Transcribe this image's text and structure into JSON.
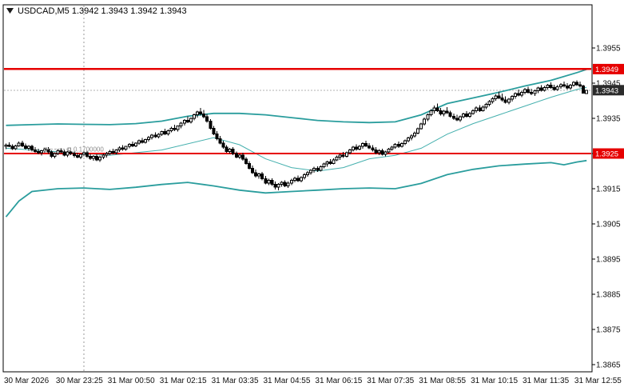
{
  "header": {
    "title_line": "USDCAD,M5 1.3942 1.3943 1.3942 1.3943"
  },
  "annotation": {
    "label": "0.1700000"
  },
  "colors": {
    "band": "#2a9d9d",
    "band_mid": "#45b0ae",
    "hline": "#e60000",
    "bull_fill": "#ffffff",
    "bear_fill": "#000000",
    "candle_outline": "#000000",
    "current_tag_bg": "#2b2b2b",
    "hline_tag_bg": "#e60000",
    "tag_text": "#ffffff",
    "separator": "#999999",
    "bid_line": "#b0b0b0",
    "frame": "#000000"
  },
  "chart_data": {
    "type": "candlestick",
    "symbol": "USDCAD",
    "timeframe": "M5",
    "title": "USDCAD,M5",
    "current_ohlc": {
      "open": "1.3942",
      "high": "1.3943",
      "low": "1.3942",
      "close": "1.3943"
    },
    "price_encoding": {
      "base": 1.39,
      "unit": 0.0001,
      "note": "all p values are (price - 1.39) * 10000"
    },
    "ylim": [
      "1.3863",
      "1.3967"
    ],
    "grid": "off",
    "legend": "none",
    "y_ticks": [
      {
        "p": 55,
        "label": "1.3955"
      },
      {
        "p": 45,
        "label": "1.3945"
      },
      {
        "p": 35,
        "label": "1.3935"
      },
      {
        "p": 25,
        "label": "1.3925"
      },
      {
        "p": 15,
        "label": "1.3915"
      },
      {
        "p": 5,
        "label": "1.3905"
      },
      {
        "p": -5,
        "label": "1.3895"
      },
      {
        "p": -15,
        "label": "1.3885"
      },
      {
        "p": -25,
        "label": "1.3875"
      },
      {
        "p": -35,
        "label": "1.3865"
      }
    ],
    "x_labels": [
      "30 Mar 2026",
      "30 Mar 23:25",
      "31 Mar 00:50",
      "31 Mar 02:15",
      "31 Mar 03:35",
      "31 Mar 04:55",
      "31 Mar 06:15",
      "31 Mar 07:35",
      "31 Mar 08:55",
      "31 Mar 10:15",
      "31 Mar 11:35",
      "31 Mar 12:55"
    ],
    "day_separator_index": 24,
    "hlines": [
      {
        "p": 49,
        "label": "1.3949"
      },
      {
        "p": 25,
        "label": "1.3925"
      }
    ],
    "current_price": {
      "p": 43,
      "label": "1.3943"
    },
    "bands": {
      "upper": [
        [
          0,
          33
        ],
        [
          8,
          33.2
        ],
        [
          16,
          33.4
        ],
        [
          24,
          33.3
        ],
        [
          32,
          33.2
        ],
        [
          40,
          33.5
        ],
        [
          48,
          34.2
        ],
        [
          56,
          35.6
        ],
        [
          64,
          36.4
        ],
        [
          72,
          36.4
        ],
        [
          80,
          36
        ],
        [
          88,
          35.2
        ],
        [
          96,
          34.4
        ],
        [
          104,
          34
        ],
        [
          112,
          33.8
        ],
        [
          120,
          34
        ],
        [
          128,
          36
        ],
        [
          136,
          39.2
        ],
        [
          144,
          40.8
        ],
        [
          152,
          42.4
        ],
        [
          160,
          44.2
        ],
        [
          168,
          45.8
        ],
        [
          176,
          48
        ],
        [
          179,
          48.9
        ]
      ],
      "middle": [
        [
          0,
          26.5
        ],
        [
          16,
          25.5
        ],
        [
          32,
          24.5
        ],
        [
          48,
          26
        ],
        [
          64,
          29.5
        ],
        [
          72,
          27.5
        ],
        [
          80,
          23.5
        ],
        [
          88,
          21
        ],
        [
          96,
          20
        ],
        [
          104,
          21
        ],
        [
          112,
          23.5
        ],
        [
          120,
          24.5
        ],
        [
          128,
          26.5
        ],
        [
          136,
          30.5
        ],
        [
          144,
          33.5
        ],
        [
          152,
          36
        ],
        [
          160,
          38.5
        ],
        [
          168,
          41
        ],
        [
          176,
          43.2
        ],
        [
          179,
          43.8
        ]
      ],
      "lower": [
        [
          0,
          7
        ],
        [
          4,
          11.5
        ],
        [
          8,
          14.2
        ],
        [
          16,
          15
        ],
        [
          24,
          15.2
        ],
        [
          32,
          14.8
        ],
        [
          40,
          15.4
        ],
        [
          48,
          16.2
        ],
        [
          56,
          16.8
        ],
        [
          64,
          15.8
        ],
        [
          72,
          14.6
        ],
        [
          80,
          13.8
        ],
        [
          88,
          14.2
        ],
        [
          96,
          14.6
        ],
        [
          104,
          15
        ],
        [
          112,
          15.2
        ],
        [
          120,
          15
        ],
        [
          128,
          16.5
        ],
        [
          136,
          19
        ],
        [
          144,
          20.5
        ],
        [
          152,
          21.5
        ],
        [
          160,
          22
        ],
        [
          168,
          22.4
        ],
        [
          172,
          21.8
        ],
        [
          176,
          22.6
        ],
        [
          179,
          23
        ]
      ]
    },
    "candles": [
      [
        27,
        27.8,
        26.2,
        27.4
      ],
      [
        27.4,
        28.2,
        26.8,
        27
      ],
      [
        27,
        27.6,
        26,
        26.4
      ],
      [
        26.4,
        27.5,
        26,
        27.2
      ],
      [
        27.2,
        28.4,
        26.9,
        28
      ],
      [
        28,
        28.6,
        26.8,
        27.2
      ],
      [
        27.2,
        27.8,
        26.1,
        26.5
      ],
      [
        26.5,
        27.4,
        25.8,
        27
      ],
      [
        27,
        27.5,
        25.6,
        26
      ],
      [
        26,
        26.8,
        25.2,
        25.6
      ],
      [
        25.6,
        26.4,
        24.8,
        25.2
      ],
      [
        25.2,
        26,
        24.4,
        25.8
      ],
      [
        25.8,
        26.6,
        25.2,
        26.2
      ],
      [
        26.2,
        26.8,
        24.9,
        25.4
      ],
      [
        25.4,
        25.9,
        23.8,
        24.2
      ],
      [
        24.2,
        25.3,
        23.6,
        25
      ],
      [
        25,
        26.2,
        24.6,
        25.8
      ],
      [
        25.8,
        26.5,
        25,
        25.4
      ],
      [
        25.4,
        26,
        24.2,
        24.6
      ],
      [
        24.6,
        25.8,
        24,
        25.4
      ],
      [
        25.4,
        26,
        24.6,
        25
      ],
      [
        25,
        25.6,
        23.9,
        24.4
      ],
      [
        24.4,
        25.2,
        23.6,
        24
      ],
      [
        24,
        25,
        23.4,
        24.8
      ],
      [
        24.8,
        25.7,
        24.2,
        25.2
      ],
      [
        25.2,
        25.8,
        23.8,
        24.2
      ],
      [
        24.2,
        24.9,
        23.2,
        23.6
      ],
      [
        23.6,
        24.6,
        23,
        24.2
      ],
      [
        24.2,
        24.8,
        22.8,
        23.2
      ],
      [
        23.2,
        24.4,
        22.6,
        24
      ],
      [
        24,
        25,
        23.4,
        24.6
      ],
      [
        24.6,
        25.4,
        23.9,
        25
      ],
      [
        25,
        26,
        24.5,
        25.6
      ],
      [
        25.6,
        26.4,
        24.8,
        25.2
      ],
      [
        25.2,
        26.2,
        24.8,
        26
      ],
      [
        26,
        27,
        25.5,
        26.6
      ],
      [
        26.6,
        27.4,
        25.8,
        26.2
      ],
      [
        26.2,
        27.2,
        25.8,
        27
      ],
      [
        27,
        28,
        26.5,
        27.6
      ],
      [
        27.6,
        28.4,
        26.8,
        27.2
      ],
      [
        27.2,
        28.2,
        26.8,
        28
      ],
      [
        28,
        29,
        27.5,
        28.6
      ],
      [
        28.6,
        29.4,
        27.8,
        28.2
      ],
      [
        28.2,
        29.2,
        27.8,
        29
      ],
      [
        29,
        30,
        28.4,
        29.6
      ],
      [
        29.6,
        30.6,
        29,
        30.2
      ],
      [
        30.2,
        31,
        29.4,
        29.8
      ],
      [
        29.8,
        30.8,
        29.3,
        30.5
      ],
      [
        30.5,
        31.5,
        30,
        31.2
      ],
      [
        31.2,
        32,
        30.2,
        30.6
      ],
      [
        30.6,
        31.8,
        30.1,
        31.5
      ],
      [
        31.5,
        32.6,
        31,
        32.2
      ],
      [
        32.2,
        33.2,
        31.4,
        31.8
      ],
      [
        31.8,
        33,
        31.3,
        32.8
      ],
      [
        32.8,
        34,
        32.2,
        33.6
      ],
      [
        33.6,
        34.8,
        33,
        34.4
      ],
      [
        34.4,
        35.6,
        33.6,
        34
      ],
      [
        34,
        35.2,
        33.5,
        35
      ],
      [
        35,
        36.4,
        34.4,
        36
      ],
      [
        36,
        37.2,
        35.2,
        36.8
      ],
      [
        36.8,
        38,
        35.8,
        36.2
      ],
      [
        36.2,
        37.4,
        35,
        35.4
      ],
      [
        35.4,
        36.2,
        33.8,
        34.2
      ],
      [
        34.2,
        34.8,
        31.8,
        32.2
      ],
      [
        32.2,
        32.8,
        30.2,
        30.6
      ],
      [
        30.6,
        31.4,
        28.8,
        29.2
      ],
      [
        29.2,
        30,
        27.6,
        28
      ],
      [
        28,
        28.6,
        26.4,
        26.8
      ],
      [
        26.8,
        27.4,
        25.2,
        25.6
      ],
      [
        25.6,
        26.6,
        25,
        26.2
      ],
      [
        26.2,
        26.8,
        24.6,
        25
      ],
      [
        25,
        25.6,
        23.6,
        24
      ],
      [
        24,
        25,
        23.4,
        24.6
      ],
      [
        24.6,
        25.2,
        23,
        23.4
      ],
      [
        23.4,
        24,
        21.8,
        22.2
      ],
      [
        22.2,
        22.8,
        20.4,
        20.8
      ],
      [
        20.8,
        21.6,
        19.2,
        19.6
      ],
      [
        19.6,
        20.4,
        18.2,
        18.6
      ],
      [
        18.6,
        19.6,
        17.8,
        19.2
      ],
      [
        19.2,
        19.8,
        17.4,
        17.8
      ],
      [
        17.8,
        18.6,
        16.2,
        16.6
      ],
      [
        16.6,
        17.8,
        16,
        17.4
      ],
      [
        17.4,
        18,
        15.8,
        16.2
      ],
      [
        16.2,
        17,
        14.8,
        15.4
      ],
      [
        15.4,
        16.6,
        14.6,
        16.2
      ],
      [
        16.2,
        17.2,
        15.6,
        16.8
      ],
      [
        16.8,
        17.4,
        15.4,
        15.8
      ],
      [
        15.8,
        17,
        15.2,
        16.6
      ],
      [
        16.6,
        17.8,
        16,
        17.4
      ],
      [
        17.4,
        18.4,
        16.8,
        18
      ],
      [
        18,
        18.8,
        16.9,
        17.3
      ],
      [
        17.3,
        18.5,
        16.8,
        18.2
      ],
      [
        18.2,
        19.4,
        17.6,
        19
      ],
      [
        19,
        20,
        18.4,
        19.6
      ],
      [
        19.6,
        20.6,
        19,
        20.2
      ],
      [
        20.2,
        21.2,
        19.6,
        20.8
      ],
      [
        20.8,
        21.4,
        19.8,
        20.2
      ],
      [
        20.2,
        21.6,
        19.9,
        21.2
      ],
      [
        21.2,
        22.4,
        20.8,
        22
      ],
      [
        22,
        23,
        21.2,
        22.6
      ],
      [
        22.6,
        23.4,
        21.8,
        22.2
      ],
      [
        22.2,
        23.6,
        21.9,
        23.2
      ],
      [
        23.2,
        24.4,
        22.8,
        24
      ],
      [
        24,
        25,
        23.2,
        24.6
      ],
      [
        24.6,
        25.4,
        23.8,
        24.2
      ],
      [
        24.2,
        25.6,
        23.9,
        25.2
      ],
      [
        25.2,
        26.4,
        24.8,
        26
      ],
      [
        26,
        27.2,
        25.6,
        26.8
      ],
      [
        26.8,
        27.6,
        25.8,
        26.2
      ],
      [
        26.2,
        27.4,
        25.9,
        27
      ],
      [
        27,
        28.2,
        26.4,
        27.8
      ],
      [
        27.8,
        28.6,
        26.8,
        27.2
      ],
      [
        27.2,
        28,
        26.2,
        26.6
      ],
      [
        26.6,
        27.4,
        25.6,
        26
      ],
      [
        26,
        26.8,
        24.8,
        25.2
      ],
      [
        25.2,
        26.2,
        24.6,
        25.8
      ],
      [
        25.8,
        26.4,
        24.4,
        24.8
      ],
      [
        24.8,
        25.8,
        24.2,
        25.4
      ],
      [
        25.4,
        26.6,
        25,
        26.2
      ],
      [
        26.2,
        27.2,
        25.8,
        26.8
      ],
      [
        26.8,
        28,
        26.4,
        27.6
      ],
      [
        27.6,
        28.4,
        26.6,
        27
      ],
      [
        27,
        28.2,
        26.7,
        27.8
      ],
      [
        27.8,
        29,
        27.4,
        28.6
      ],
      [
        28.6,
        29.8,
        28.2,
        29.4
      ],
      [
        29.4,
        30.4,
        28.8,
        30
      ],
      [
        30,
        31.2,
        29.6,
        30.8
      ],
      [
        30.8,
        32.4,
        30.4,
        32
      ],
      [
        32,
        33.8,
        31.8,
        33.4
      ],
      [
        33.4,
        35.2,
        33,
        34.8
      ],
      [
        34.8,
        36.4,
        34.2,
        36
      ],
      [
        36,
        37.6,
        35.6,
        37.2
      ],
      [
        37.2,
        38.6,
        36.4,
        38
      ],
      [
        38,
        39.2,
        36.8,
        37.2
      ],
      [
        37.2,
        38,
        35.8,
        36.2
      ],
      [
        36.2,
        37.4,
        35.6,
        37
      ],
      [
        37,
        38.2,
        36.2,
        36.6
      ],
      [
        36.6,
        37.2,
        35.2,
        35.6
      ],
      [
        35.6,
        36.4,
        34.6,
        35
      ],
      [
        35,
        36,
        34.2,
        34.6
      ],
      [
        34.6,
        35.8,
        34,
        35.4
      ],
      [
        35.4,
        36.6,
        35,
        36.2
      ],
      [
        36.2,
        37,
        35.2,
        35.6
      ],
      [
        35.6,
        36.8,
        35.1,
        36.4
      ],
      [
        36.4,
        37.6,
        36,
        37.2
      ],
      [
        37.2,
        38.4,
        36.6,
        38
      ],
      [
        38,
        38.8,
        36.8,
        37.2
      ],
      [
        37.2,
        38.6,
        36.9,
        38.2
      ],
      [
        38.2,
        39.4,
        37.6,
        39
      ],
      [
        39,
        40.2,
        38.4,
        39.8
      ],
      [
        39.8,
        41,
        39.2,
        40.6
      ],
      [
        40.6,
        41.8,
        40,
        41.4
      ],
      [
        41.4,
        42.6,
        40.4,
        40.8
      ],
      [
        40.8,
        42,
        39.8,
        40.2
      ],
      [
        40.2,
        41.2,
        39.2,
        39.6
      ],
      [
        39.6,
        40.8,
        39,
        40.4
      ],
      [
        40.4,
        41.6,
        39.8,
        41.2
      ],
      [
        41.2,
        42.4,
        40.6,
        42
      ],
      [
        42,
        43.2,
        41.2,
        41.6
      ],
      [
        41.6,
        42.8,
        41,
        42.4
      ],
      [
        42.4,
        43.6,
        41.8,
        43.2
      ],
      [
        43.2,
        44,
        42,
        42.4
      ],
      [
        42.4,
        43.4,
        41.6,
        42
      ],
      [
        42,
        43.2,
        41.4,
        42.8
      ],
      [
        42.8,
        44,
        42.2,
        43.6
      ],
      [
        43.6,
        44.4,
        42.6,
        43
      ],
      [
        43,
        44.2,
        42.6,
        43.8
      ],
      [
        43.8,
        44.8,
        43.2,
        44.4
      ],
      [
        44.4,
        45.2,
        43.4,
        43.8
      ],
      [
        43.8,
        44.6,
        42.8,
        43.2
      ],
      [
        43.2,
        44.4,
        42.8,
        44
      ],
      [
        44,
        45,
        43.4,
        44.6
      ],
      [
        44.6,
        45.4,
        43.8,
        44.2
      ],
      [
        44.2,
        45,
        43.2,
        43.6
      ],
      [
        43.6,
        44.8,
        43.2,
        44.4
      ],
      [
        44.4,
        45.6,
        44,
        45.2
      ],
      [
        45.2,
        45.8,
        44.2,
        44.6
      ],
      [
        44.6,
        45.4,
        43.8,
        44.2
      ],
      [
        44.2,
        44.6,
        42,
        42.2
      ],
      [
        42,
        43,
        42,
        43
      ]
    ]
  }
}
